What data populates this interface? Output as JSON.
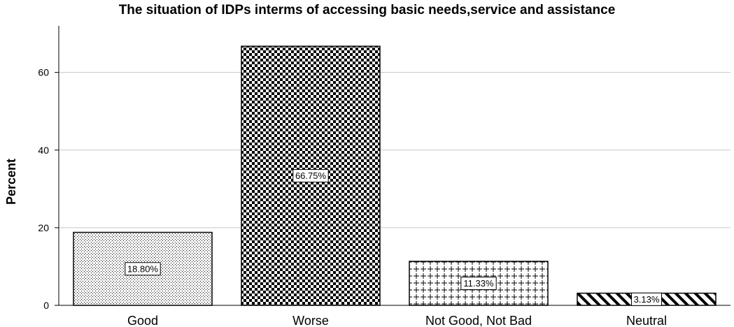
{
  "chart_data": {
    "type": "bar",
    "title": "The situation of IDPs interms of accessing basic needs,service and assistance",
    "xlabel": "",
    "ylabel": "Percent",
    "categories": [
      "Good",
      "Worse",
      "Not Good, Not Bad",
      "Neutral"
    ],
    "values": [
      18.8,
      66.75,
      11.33,
      3.13
    ],
    "data_labels": [
      "18.80%",
      "66.75%",
      "11.33%",
      "3.13%"
    ],
    "patterns": [
      "dots",
      "checker",
      "cross",
      "diagonal"
    ],
    "ylim": [
      0,
      72
    ],
    "yticks": [
      0,
      20,
      40,
      60
    ],
    "grid": "horizontal",
    "bar_color": "#000000",
    "background": "#ffffff"
  }
}
